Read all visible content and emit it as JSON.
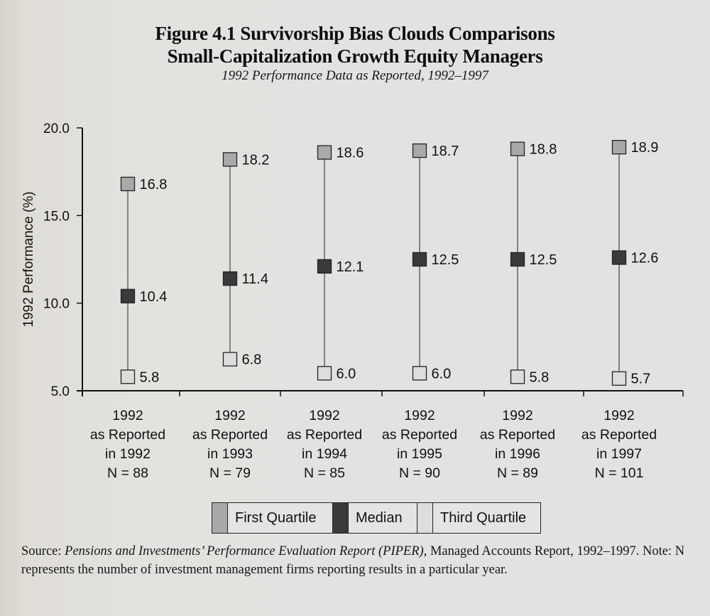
{
  "figure": {
    "title_line1": "Figure 4.1  Survivorship Bias Clouds Comparisons",
    "title_line2": "Small-Capitalization Growth Equity Managers",
    "subtitle": "1992 Performance Data as Reported, 1992–1997"
  },
  "chart_data": {
    "type": "scatter",
    "title": "Figure 4.1  Survivorship Bias Clouds Comparisons",
    "subtitle": "1992 Performance Data as Reported, 1992–1997",
    "xlabel": "",
    "ylabel": "1992 Performance (%)",
    "ylim": [
      5.0,
      20.0
    ],
    "yticks": [
      "5.0",
      "10.0",
      "15.0",
      "20.0"
    ],
    "grid": false,
    "legend_position": "bottom",
    "categories": [
      {
        "line1": "1992",
        "line2": "as Reported",
        "line3": "in 1992",
        "line4": "N = 88"
      },
      {
        "line1": "1992",
        "line2": "as Reported",
        "line3": "in 1993",
        "line4": "N = 79"
      },
      {
        "line1": "1992",
        "line2": "as Reported",
        "line3": "in 1994",
        "line4": "N = 85"
      },
      {
        "line1": "1992",
        "line2": "as Reported",
        "line3": "in 1995",
        "line4": "N = 90"
      },
      {
        "line1": "1992",
        "line2": "as Reported",
        "line3": "in 1996",
        "line4": "N = 89"
      },
      {
        "line1": "1992",
        "line2": "as Reported",
        "line3": "in 1997",
        "line4": "N = 101"
      }
    ],
    "series": [
      {
        "name": "First Quartile",
        "color": "#a9a9a9",
        "values": [
          16.8,
          18.2,
          18.6,
          18.7,
          18.8,
          18.9
        ],
        "labels": [
          "16.8",
          "18.2",
          "18.6",
          "18.7",
          "18.8",
          "18.9"
        ]
      },
      {
        "name": "Median",
        "color": "#3a3a3a",
        "values": [
          10.4,
          11.4,
          12.1,
          12.5,
          12.5,
          12.6
        ],
        "labels": [
          "10.4",
          "11.4",
          "12.1",
          "12.5",
          "12.5",
          "12.6"
        ]
      },
      {
        "name": "Third Quartile",
        "color": "#dddddb",
        "values": [
          5.8,
          6.8,
          6.0,
          6.0,
          5.8,
          5.7
        ],
        "labels": [
          "5.8",
          "6.8",
          "6.0",
          "6.0",
          "5.8",
          "5.7"
        ]
      }
    ]
  },
  "legend": {
    "items": [
      {
        "label": "First Quartile",
        "color": "#a9a9a9"
      },
      {
        "label": "Median",
        "color": "#3a3a3a"
      },
      {
        "label": "Third Quartile",
        "color": "#dddddb"
      }
    ]
  },
  "source": {
    "prefix": "Source:",
    "text": "Pensions and Investments’ Performance Evaluation Report (PIPER),",
    "text2": "Managed Accounts Report, 1992–1997. Note: N represents the number of investment management firms reporting results in a particular year."
  }
}
